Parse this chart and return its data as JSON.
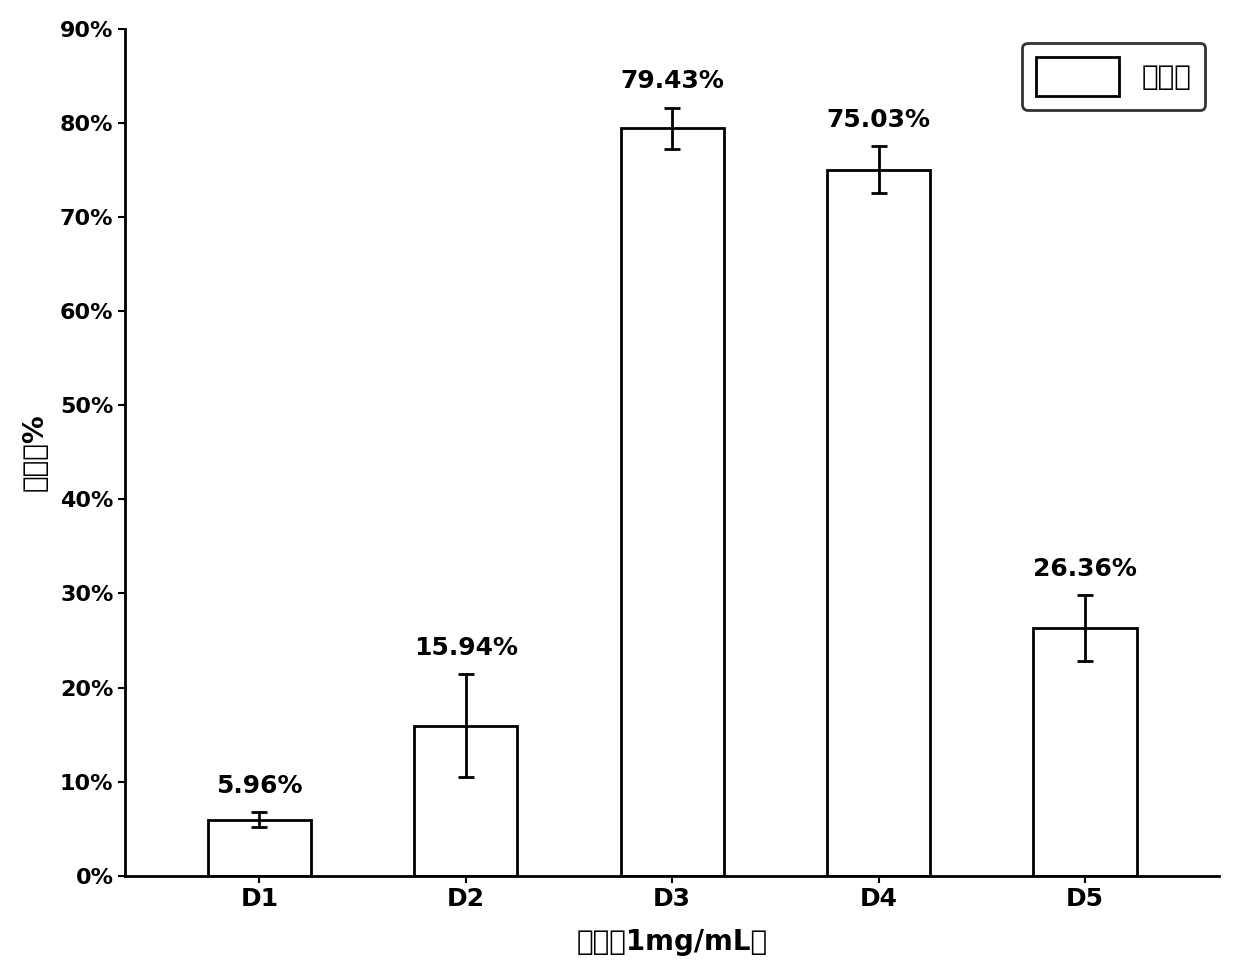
{
  "categories": [
    "D1",
    "D2",
    "D3",
    "D4",
    "D5"
  ],
  "values": [
    5.96,
    15.94,
    79.43,
    75.03,
    26.36
  ],
  "errors": [
    0.8,
    5.5,
    2.2,
    2.5,
    3.5
  ],
  "bar_color": "#ffffff",
  "bar_edgecolor": "#000000",
  "ylabel": "抑制率%",
  "xlabel": "样品（1mg/mL）",
  "ylim": [
    0,
    90
  ],
  "yticks": [
    0,
    10,
    20,
    30,
    40,
    50,
    60,
    70,
    80,
    90
  ],
  "ytick_labels": [
    "0%",
    "10%",
    "20%",
    "30%",
    "40%",
    "50%",
    "60%",
    "70%",
    "80%",
    "90%"
  ],
  "legend_label": "抑制率",
  "value_labels": [
    "5.96%",
    "15.94%",
    "79.43%",
    "75.03%",
    "26.36%"
  ],
  "background_color": "#ffffff"
}
